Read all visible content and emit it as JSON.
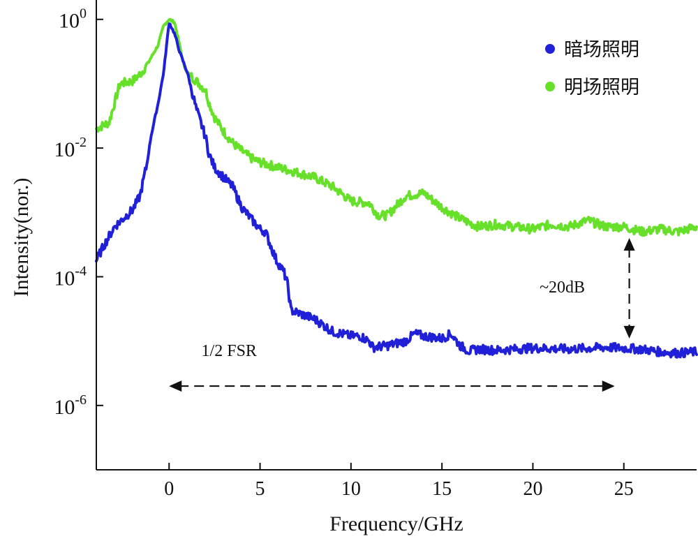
{
  "chart_data": {
    "type": "line",
    "xlabel": "Frequency/GHz",
    "ylabel": "Intensity(nor.)",
    "xlim": [
      -4,
      29
    ],
    "ylim": [
      1e-07,
      2.0
    ],
    "yscale": "log",
    "x_ticks": [
      0,
      5,
      10,
      15,
      20,
      25
    ],
    "y_ticks": [
      {
        "value": 1,
        "base": "10",
        "exp": "0"
      },
      {
        "value": 0.01,
        "base": "10",
        "exp": "-2"
      },
      {
        "value": 0.0001,
        "base": "10",
        "exp": "-4"
      },
      {
        "value": 1e-06,
        "base": "10",
        "exp": "-6"
      }
    ],
    "grid": false,
    "legend_position": "top-right",
    "series": [
      {
        "name": "暗场照明",
        "color": "#2020d8",
        "x": [
          -4,
          -3.6,
          -3,
          -2,
          -1.6,
          -1.2,
          -1,
          -0.6,
          -0.3,
          0,
          0.3,
          0.6,
          1,
          1.5,
          2,
          2.2,
          2.5,
          3,
          3.5,
          3.8,
          4,
          4.5,
          5,
          5.3,
          5.5,
          5.9,
          6.3,
          6.5,
          6.6,
          6.7,
          7,
          8,
          9,
          10,
          10.5,
          11,
          11.2,
          12,
          13,
          13.5,
          14,
          15,
          15.5,
          16,
          16.5,
          17,
          18,
          20,
          22,
          24,
          26,
          27,
          28,
          29
        ],
        "y": [
          0.00018,
          0.0003,
          0.0006,
          0.0011,
          0.0018,
          0.006,
          0.015,
          0.05,
          0.15,
          0.9,
          0.6,
          0.3,
          0.15,
          0.04,
          0.015,
          0.008,
          0.005,
          0.0035,
          0.0025,
          0.0016,
          0.0012,
          0.0008,
          0.00055,
          0.0005,
          0.00035,
          0.00018,
          0.00012,
          8e-05,
          5e-05,
          3e-05,
          2.8e-05,
          2.2e-05,
          1.4e-05,
          1.2e-05,
          1.2e-05,
          1e-05,
          8e-06,
          8.5e-06,
          1e-05,
          1.3e-05,
          1.2e-05,
          1.1e-05,
          1.3e-05,
          8.5e-06,
          7e-06,
          7.5e-06,
          7.2e-06,
          7.8e-06,
          7.5e-06,
          8e-06,
          7.5e-06,
          6.8e-06,
          6.5e-06,
          6.8e-06
        ]
      },
      {
        "name": "明场照明",
        "color": "#66e028",
        "x": [
          -4,
          -3.3,
          -3,
          -2.7,
          -2,
          -1.5,
          -1.2,
          -0.6,
          -0.3,
          0,
          0.3,
          0.5,
          0.8,
          1,
          1.5,
          2,
          2.2,
          2.5,
          3,
          3.5,
          4,
          4.5,
          5,
          6,
          7,
          8,
          9,
          10,
          11,
          11.5,
          12,
          13,
          14,
          15,
          16,
          17,
          18,
          19,
          20,
          21,
          22,
          23,
          24,
          25,
          26,
          27,
          28,
          29
        ],
        "y": [
          0.02,
          0.025,
          0.05,
          0.1,
          0.11,
          0.15,
          0.2,
          0.4,
          0.8,
          1.0,
          0.9,
          0.5,
          0.2,
          0.15,
          0.11,
          0.08,
          0.05,
          0.03,
          0.018,
          0.012,
          0.009,
          0.007,
          0.006,
          0.005,
          0.0042,
          0.0035,
          0.0025,
          0.0015,
          0.0014,
          0.0009,
          0.0009,
          0.0018,
          0.002,
          0.0012,
          0.0008,
          0.0006,
          0.00065,
          0.0006,
          0.00055,
          0.00065,
          0.0006,
          0.00075,
          0.0006,
          0.0006,
          0.0005,
          0.00055,
          0.0005,
          0.0006
        ]
      }
    ],
    "annotations": [
      {
        "text": "1/2 FSR",
        "arrow": "horizontal",
        "x_from": 0,
        "x_to": 24.5,
        "y": 2e-06
      },
      {
        "text": "~20dB",
        "arrow": "vertical",
        "x": 25.3,
        "y_from": 0.0004,
        "y_to": 1.1e-05
      }
    ]
  }
}
